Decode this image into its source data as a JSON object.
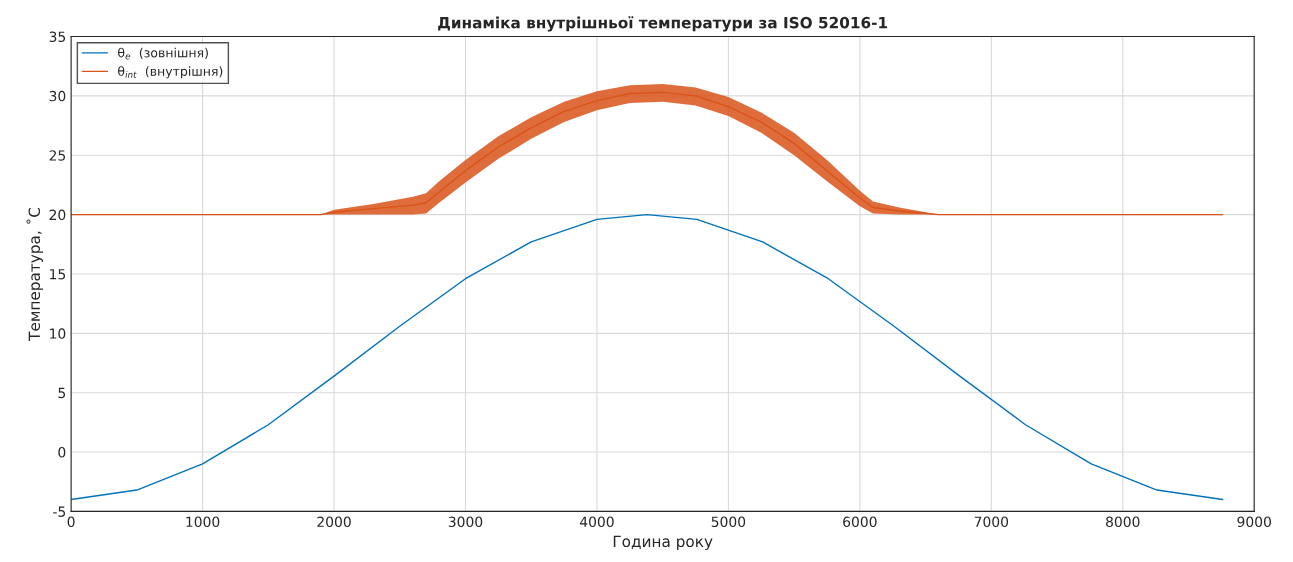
{
  "chart_data": {
    "type": "line",
    "title": "Динаміка внутрішньої температури за ISO 52016-1",
    "xlabel": "Година року",
    "ylabel": "Температура, ˚C",
    "xlim": [
      0,
      9000
    ],
    "xticks": [
      0,
      1000,
      2000,
      3000,
      4000,
      5000,
      6000,
      7000,
      8000,
      9000
    ],
    "ylim": [
      -5,
      35
    ],
    "yticks": [
      -5,
      0,
      5,
      10,
      15,
      20,
      25,
      30,
      35
    ],
    "grid": true,
    "legend": "top left",
    "line_style": "solid",
    "marker": "none",
    "series": [
      {
        "name": "θ$_{e}$  (зовнішня)",
        "color": "#0072bd",
        "x": [
          0,
          500,
          1000,
          1500,
          2000,
          2500,
          3000,
          3500,
          4000,
          4380,
          4760,
          5260,
          5760,
          6260,
          6760,
          7260,
          7760,
          8260,
          8760
        ],
        "values": [
          -4.0,
          -3.2,
          -1.0,
          2.3,
          6.4,
          10.6,
          14.6,
          17.7,
          19.6,
          20.0,
          19.6,
          17.7,
          14.6,
          10.6,
          6.4,
          2.3,
          -1.0,
          -3.2,
          -4.0
        ]
      },
      {
        "name": "θ$_{int}$  (внутрішня)",
        "color": "#d95319",
        "x": [
          0,
          1900,
          2000,
          2300,
          2600,
          2700,
          2800,
          3000,
          3250,
          3500,
          3750,
          4000,
          4250,
          4500,
          4750,
          5000,
          5250,
          5500,
          5750,
          6000,
          6100,
          6300,
          6600,
          8760
        ],
        "values": [
          20,
          20,
          20.2,
          20.5,
          20.8,
          21.0,
          21.9,
          23.7,
          25.7,
          27.3,
          28.7,
          29.6,
          30.2,
          30.3,
          30.0,
          29.1,
          27.8,
          26.0,
          23.7,
          21.4,
          20.6,
          20.3,
          20,
          20
        ],
        "lower": [
          20,
          20,
          20,
          20,
          20,
          20.1,
          21.0,
          22.7,
          24.7,
          26.4,
          27.8,
          28.8,
          29.4,
          29.5,
          29.2,
          28.3,
          26.9,
          25.0,
          22.8,
          20.7,
          20.1,
          20,
          20,
          20
        ],
        "upper": [
          20,
          20,
          20.4,
          20.9,
          21.5,
          21.8,
          22.8,
          24.6,
          26.6,
          28.2,
          29.5,
          30.4,
          30.9,
          31.0,
          30.7,
          29.9,
          28.6,
          26.9,
          24.6,
          22,
          21.1,
          20.6,
          20,
          20
        ]
      }
    ]
  }
}
